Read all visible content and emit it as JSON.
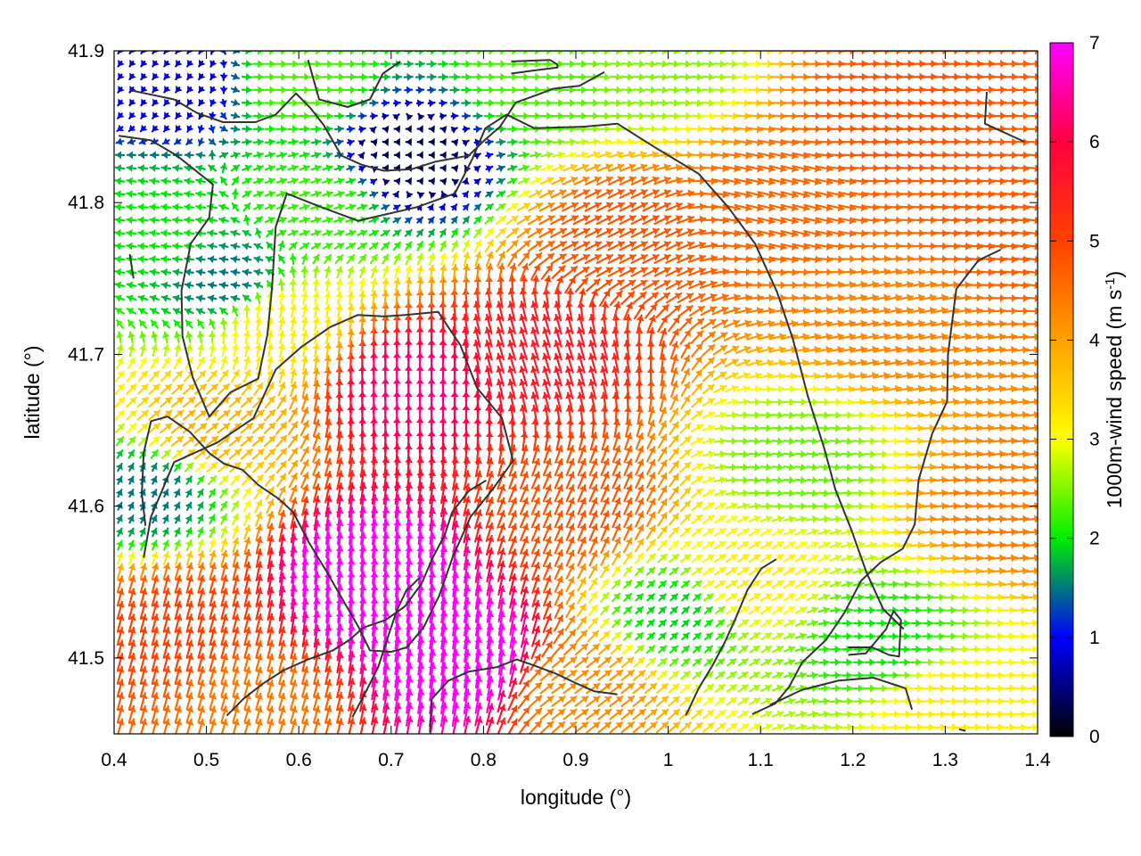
{
  "chart_data": {
    "type": "vector-field",
    "xlabel": "longitude (°)",
    "ylabel": "latitude (°)",
    "xlim": [
      0.4,
      1.4
    ],
    "ylim": [
      41.45,
      41.9
    ],
    "xticks": [
      "0.4",
      "0.5",
      "0.6",
      "0.7",
      "0.8",
      "0.9",
      "1",
      "1.1",
      "1.2",
      "1.3",
      "1.4"
    ],
    "yticks": [
      "41.5",
      "41.6",
      "41.7",
      "41.8",
      "41.9"
    ],
    "colorbar": {
      "label_main": "1000m-wind speed (m s",
      "label_sup": "-1",
      "label_close": ")",
      "range": [
        0,
        7
      ],
      "ticks": [
        "0",
        "1",
        "2",
        "3",
        "4",
        "5",
        "6",
        "7"
      ],
      "stops": [
        "#000000",
        "#0000ff",
        "#00ee00",
        "#ffff00",
        "#ffa000",
        "#ff4000",
        "#ff0040",
        "#ff00ff"
      ]
    },
    "grid": false,
    "arrow_spacing": {
      "dlon": 0.0125,
      "dlat": 0.00857
    },
    "wind_field_samples": [
      {
        "lon": 0.47,
        "lat": 41.88,
        "u": -0.3,
        "v": -0.4,
        "speed": 0.8
      },
      {
        "lon": 0.72,
        "lat": 41.83,
        "u": -0.2,
        "v": 0.0,
        "speed": 0.3
      },
      {
        "lon": 0.45,
        "lat": 41.78,
        "u": -1.8,
        "v": 0.2,
        "speed": 2.0
      },
      {
        "lon": 0.52,
        "lat": 41.75,
        "u": -1.3,
        "v": 0.2,
        "speed": 1.5
      },
      {
        "lon": 0.72,
        "lat": 41.68,
        "u": 0.1,
        "v": 5.5,
        "speed": 6.3
      },
      {
        "lon": 0.68,
        "lat": 41.55,
        "u": 0.6,
        "v": 6.8,
        "speed": 7.5
      },
      {
        "lon": 0.78,
        "lat": 41.5,
        "u": 0.9,
        "v": 6.8,
        "speed": 7.4
      },
      {
        "lon": 0.47,
        "lat": 41.52,
        "u": 1.2,
        "v": 4.5,
        "speed": 5.0
      },
      {
        "lon": 0.86,
        "lat": 41.7,
        "u": -1.5,
        "v": 5.0,
        "speed": 5.6
      },
      {
        "lon": 0.95,
        "lat": 41.78,
        "u": 4.0,
        "v": 2.0,
        "speed": 4.8
      },
      {
        "lon": 1.25,
        "lat": 41.86,
        "u": 4.6,
        "v": 0.3,
        "speed": 4.8
      },
      {
        "lon": 1.25,
        "lat": 41.72,
        "u": 4.0,
        "v": 0.8,
        "speed": 4.3
      },
      {
        "lon": 1.08,
        "lat": 41.55,
        "u": 2.5,
        "v": 1.6,
        "speed": 3.2
      },
      {
        "lon": 1.14,
        "lat": 41.63,
        "u": 1.8,
        "v": -0.2,
        "speed": 2.4
      },
      {
        "lon": 1.01,
        "lat": 41.53,
        "u": 1.3,
        "v": 1.2,
        "speed": 1.9
      },
      {
        "lon": 1.23,
        "lat": 41.51,
        "u": 1.4,
        "v": 0.0,
        "speed": 2.0
      },
      {
        "lon": 1.37,
        "lat": 41.6,
        "u": 4.2,
        "v": 0.4,
        "speed": 4.4
      },
      {
        "lon": 1.3,
        "lat": 41.47,
        "u": 3.0,
        "v": 0.1,
        "speed": 3.2
      },
      {
        "lon": 0.98,
        "lat": 41.89,
        "u": 2.0,
        "v": -0.2,
        "speed": 2.5
      },
      {
        "lon": 0.86,
        "lat": 41.88,
        "u": 2.0,
        "v": 0.0,
        "speed": 2.3
      },
      {
        "lon": 0.6,
        "lat": 41.88,
        "u": 2.0,
        "v": 0.0,
        "speed": 2.3
      },
      {
        "lon": 0.62,
        "lat": 41.8,
        "u": 1.5,
        "v": 0.5,
        "speed": 2.2
      },
      {
        "lon": 0.58,
        "lat": 41.72,
        "u": 0.5,
        "v": 2.5,
        "speed": 3.2
      },
      {
        "lon": 0.5,
        "lat": 41.65,
        "u": 2.5,
        "v": 2.0,
        "speed": 3.8
      },
      {
        "lon": 0.44,
        "lat": 41.61,
        "u": 0.5,
        "v": 1.0,
        "speed": 1.5
      },
      {
        "lon": 0.55,
        "lat": 41.47,
        "u": 1.0,
        "v": 3.5,
        "speed": 4.4
      },
      {
        "lon": 0.9,
        "lat": 41.48,
        "u": 2.0,
        "v": 1.5,
        "speed": 4.2
      },
      {
        "lon": 0.9,
        "lat": 41.6,
        "u": 1.5,
        "v": 3.5,
        "speed": 4.8
      },
      {
        "lon": 1.12,
        "lat": 41.8,
        "u": 4.0,
        "v": -1.0,
        "speed": 4.6
      },
      {
        "lon": 1.38,
        "lat": 41.78,
        "u": 4.5,
        "v": -0.5,
        "speed": 4.7
      }
    ],
    "contours": [
      [
        [
          0.418,
          41.874
        ],
        [
          0.465,
          41.868
        ],
        [
          0.49,
          41.859
        ],
        [
          0.518,
          41.853
        ],
        [
          0.553,
          41.853
        ],
        [
          0.575,
          41.858
        ],
        [
          0.597,
          41.872
        ],
        [
          0.613,
          41.862
        ],
        [
          0.627,
          41.851
        ],
        [
          0.646,
          41.831
        ],
        [
          0.668,
          41.825
        ],
        [
          0.692,
          41.821
        ],
        [
          0.722,
          41.822
        ],
        [
          0.748,
          41.827
        ],
        [
          0.784,
          41.831
        ],
        [
          0.801,
          41.841
        ],
        [
          0.818,
          41.85
        ],
        [
          0.835,
          41.866
        ],
        [
          0.858,
          41.871
        ],
        [
          0.875,
          41.875
        ],
        [
          0.904,
          41.877
        ],
        [
          0.931,
          41.886
        ]
      ],
      [
        [
          0.405,
          41.844
        ],
        [
          0.44,
          41.841
        ],
        [
          0.468,
          41.831
        ],
        [
          0.507,
          41.812
        ],
        [
          0.503,
          41.79
        ],
        [
          0.483,
          41.773
        ],
        [
          0.473,
          41.742
        ],
        [
          0.474,
          41.712
        ],
        [
          0.485,
          41.685
        ],
        [
          0.503,
          41.659
        ],
        [
          0.526,
          41.675
        ],
        [
          0.556,
          41.684
        ],
        [
          0.566,
          41.713
        ],
        [
          0.571,
          41.744
        ],
        [
          0.575,
          41.784
        ],
        [
          0.587,
          41.806
        ],
        [
          0.62,
          41.798
        ],
        [
          0.664,
          41.788
        ],
        [
          0.728,
          41.797
        ],
        [
          0.769,
          41.806
        ],
        [
          0.788,
          41.829
        ],
        [
          0.802,
          41.849
        ],
        [
          0.825,
          41.858
        ],
        [
          0.855,
          41.849
        ],
        [
          0.908,
          41.85
        ],
        [
          0.945,
          41.852
        ],
        [
          0.984,
          41.837
        ],
        [
          1.033,
          41.819
        ],
        [
          1.065,
          41.797
        ],
        [
          1.094,
          41.773
        ],
        [
          1.118,
          41.741
        ],
        [
          1.135,
          41.71
        ],
        [
          1.151,
          41.673
        ],
        [
          1.169,
          41.638
        ],
        [
          1.181,
          41.611
        ],
        [
          1.198,
          41.585
        ],
        [
          1.215,
          41.556
        ],
        [
          1.233,
          41.532
        ],
        [
          1.255,
          41.519
        ]
      ],
      [
        [
          0.61,
          41.894
        ],
        [
          0.622,
          41.868
        ],
        [
          0.653,
          41.863
        ],
        [
          0.677,
          41.868
        ],
        [
          0.691,
          41.885
        ],
        [
          0.71,
          41.893
        ]
      ],
      [
        [
          0.417,
          41.766
        ],
        [
          0.421,
          41.75
        ]
      ],
      [
        [
          0.83,
          41.893
        ],
        [
          0.872,
          41.894
        ],
        [
          0.88,
          41.891
        ],
        [
          0.88,
          41.889
        ],
        [
          0.854,
          41.887
        ],
        [
          0.83,
          41.885
        ]
      ],
      [
        [
          1.345,
          41.873
        ],
        [
          1.343,
          41.852
        ],
        [
          1.386,
          41.84
        ]
      ],
      [
        [
          1.36,
          41.769
        ],
        [
          1.336,
          41.762
        ],
        [
          1.312,
          41.743
        ],
        [
          1.303,
          41.7
        ],
        [
          1.302,
          41.669
        ],
        [
          1.286,
          41.648
        ],
        [
          1.271,
          41.617
        ],
        [
          1.267,
          41.588
        ],
        [
          1.254,
          41.572
        ],
        [
          1.23,
          41.563
        ],
        [
          1.209,
          41.551
        ],
        [
          1.191,
          41.53
        ],
        [
          1.171,
          41.512
        ],
        [
          1.145,
          41.497
        ],
        [
          1.131,
          41.481
        ],
        [
          1.116,
          41.47
        ],
        [
          1.091,
          41.463
        ]
      ],
      [
        [
          0.432,
          41.566
        ],
        [
          0.44,
          41.593
        ],
        [
          0.465,
          41.629
        ],
        [
          0.512,
          41.642
        ],
        [
          0.551,
          41.658
        ],
        [
          0.575,
          41.69
        ],
        [
          0.603,
          41.705
        ],
        [
          0.634,
          41.718
        ],
        [
          0.664,
          41.726
        ],
        [
          0.693,
          41.725
        ],
        [
          0.715,
          41.726
        ],
        [
          0.751,
          41.728
        ],
        [
          0.775,
          41.706
        ],
        [
          0.793,
          41.678
        ],
        [
          0.82,
          41.658
        ],
        [
          0.832,
          41.63
        ],
        [
          0.811,
          41.612
        ],
        [
          0.786,
          41.593
        ],
        [
          0.767,
          41.567
        ],
        [
          0.752,
          41.541
        ],
        [
          0.735,
          41.52
        ],
        [
          0.717,
          41.507
        ],
        [
          0.7,
          41.504
        ],
        [
          0.677,
          41.505
        ],
        [
          0.665,
          41.52
        ],
        [
          0.648,
          41.538
        ],
        [
          0.63,
          41.557
        ],
        [
          0.611,
          41.576
        ],
        [
          0.594,
          41.596
        ],
        [
          0.578,
          41.605
        ],
        [
          0.556,
          41.614
        ],
        [
          0.539,
          41.624
        ],
        [
          0.519,
          41.628
        ],
        [
          0.503,
          41.635
        ],
        [
          0.482,
          41.649
        ],
        [
          0.458,
          41.659
        ],
        [
          0.44,
          41.656
        ],
        [
          0.432,
          41.635
        ],
        [
          0.43,
          41.608
        ],
        [
          0.434,
          41.587
        ]
      ],
      [
        [
          0.522,
          41.462
        ],
        [
          0.54,
          41.473
        ],
        [
          0.561,
          41.483
        ],
        [
          0.584,
          41.492
        ],
        [
          0.61,
          41.499
        ],
        [
          0.637,
          41.505
        ],
        [
          0.655,
          41.512
        ],
        [
          0.67,
          41.52
        ],
        [
          0.694,
          41.525
        ],
        [
          0.715,
          41.534
        ],
        [
          0.733,
          41.549
        ],
        [
          0.745,
          41.566
        ],
        [
          0.758,
          41.581
        ],
        [
          0.766,
          41.596
        ],
        [
          0.784,
          41.61
        ],
        [
          0.803,
          41.617
        ]
      ],
      [
        [
          0.658,
          41.461
        ],
        [
          0.672,
          41.477
        ],
        [
          0.686,
          41.494
        ],
        [
          0.696,
          41.513
        ],
        [
          0.706,
          41.531
        ],
        [
          0.716,
          41.544
        ],
        [
          0.731,
          41.553
        ]
      ],
      [
        [
          0.742,
          41.451
        ],
        [
          0.744,
          41.473
        ],
        [
          0.762,
          41.485
        ],
        [
          0.784,
          41.491
        ],
        [
          0.815,
          41.494
        ],
        [
          0.836,
          41.499
        ],
        [
          0.855,
          41.495
        ],
        [
          0.877,
          41.49
        ],
        [
          0.898,
          41.484
        ],
        [
          0.92,
          41.478
        ],
        [
          0.945,
          41.476
        ]
      ],
      [
        [
          1.019,
          41.462
        ],
        [
          1.033,
          41.48
        ],
        [
          1.048,
          41.495
        ],
        [
          1.061,
          41.51
        ],
        [
          1.073,
          41.526
        ],
        [
          1.086,
          41.545
        ],
        [
          1.101,
          41.559
        ],
        [
          1.117,
          41.565
        ]
      ],
      [
        [
          1.195,
          41.507
        ],
        [
          1.221,
          41.507
        ],
        [
          1.239,
          41.502
        ],
        [
          1.25,
          41.501
        ],
        [
          1.252,
          41.525
        ],
        [
          1.244,
          41.531
        ],
        [
          1.236,
          41.519
        ],
        [
          1.214,
          41.503
        ],
        [
          1.195,
          41.502
        ]
      ],
      [
        [
          1.11,
          41.469
        ],
        [
          1.145,
          41.479
        ],
        [
          1.184,
          41.485
        ],
        [
          1.222,
          41.487
        ],
        [
          1.247,
          41.482
        ],
        [
          1.257,
          41.48
        ],
        [
          1.264,
          41.466
        ]
      ],
      [
        [
          1.315,
          41.453
        ],
        [
          1.322,
          41.452
        ]
      ]
    ]
  }
}
